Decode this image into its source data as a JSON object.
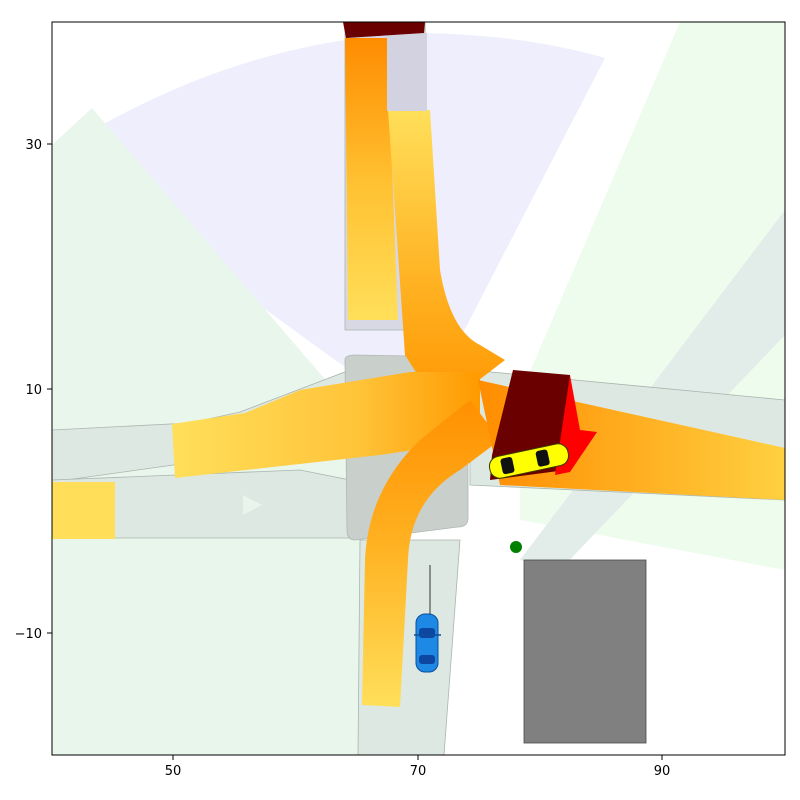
{
  "chart_data": {
    "type": "scatter",
    "title": "",
    "xlabel": "",
    "ylabel": "",
    "xlim": [
      40,
      100
    ],
    "ylim": [
      -20,
      40
    ],
    "grid": false,
    "x_ticks": [
      50,
      70,
      90
    ],
    "y_ticks": [
      30,
      10,
      -10
    ],
    "x_tick_labels": [
      "50",
      "70",
      "90"
    ],
    "y_tick_labels": [
      "30",
      "10",
      "−10"
    ],
    "colors": {
      "road": "#dbe7e0",
      "road_edge": "#a8b4ad",
      "sidewalk_area": "#e8f6ec",
      "ego_fov": "#eeeefc",
      "sensor_fov": "#eefcee",
      "occlusion_mid": "#ffa500",
      "occlusion_light": "#ffdf5a",
      "occlusion_dark": "#6a0000",
      "occlusion_red": "#ff0000",
      "building": "#808080",
      "ego_car": "#1e88e5",
      "other_car": "#ffff00",
      "goal_marker": "#008000"
    },
    "objects": [
      {
        "kind": "ego-vehicle",
        "label": "",
        "x": 70.7,
        "y": -11.0,
        "heading_deg": 90
      },
      {
        "kind": "other-vehicle",
        "label": "",
        "x": 79.5,
        "y": 4.6,
        "heading_deg": 15
      },
      {
        "kind": "goal-point",
        "label": "",
        "x": 78.0,
        "y": -2.9
      },
      {
        "kind": "building",
        "label": "",
        "x_range": [
          78.5,
          88.5
        ],
        "y_range": [
          -19,
          -4
        ]
      }
    ]
  }
}
